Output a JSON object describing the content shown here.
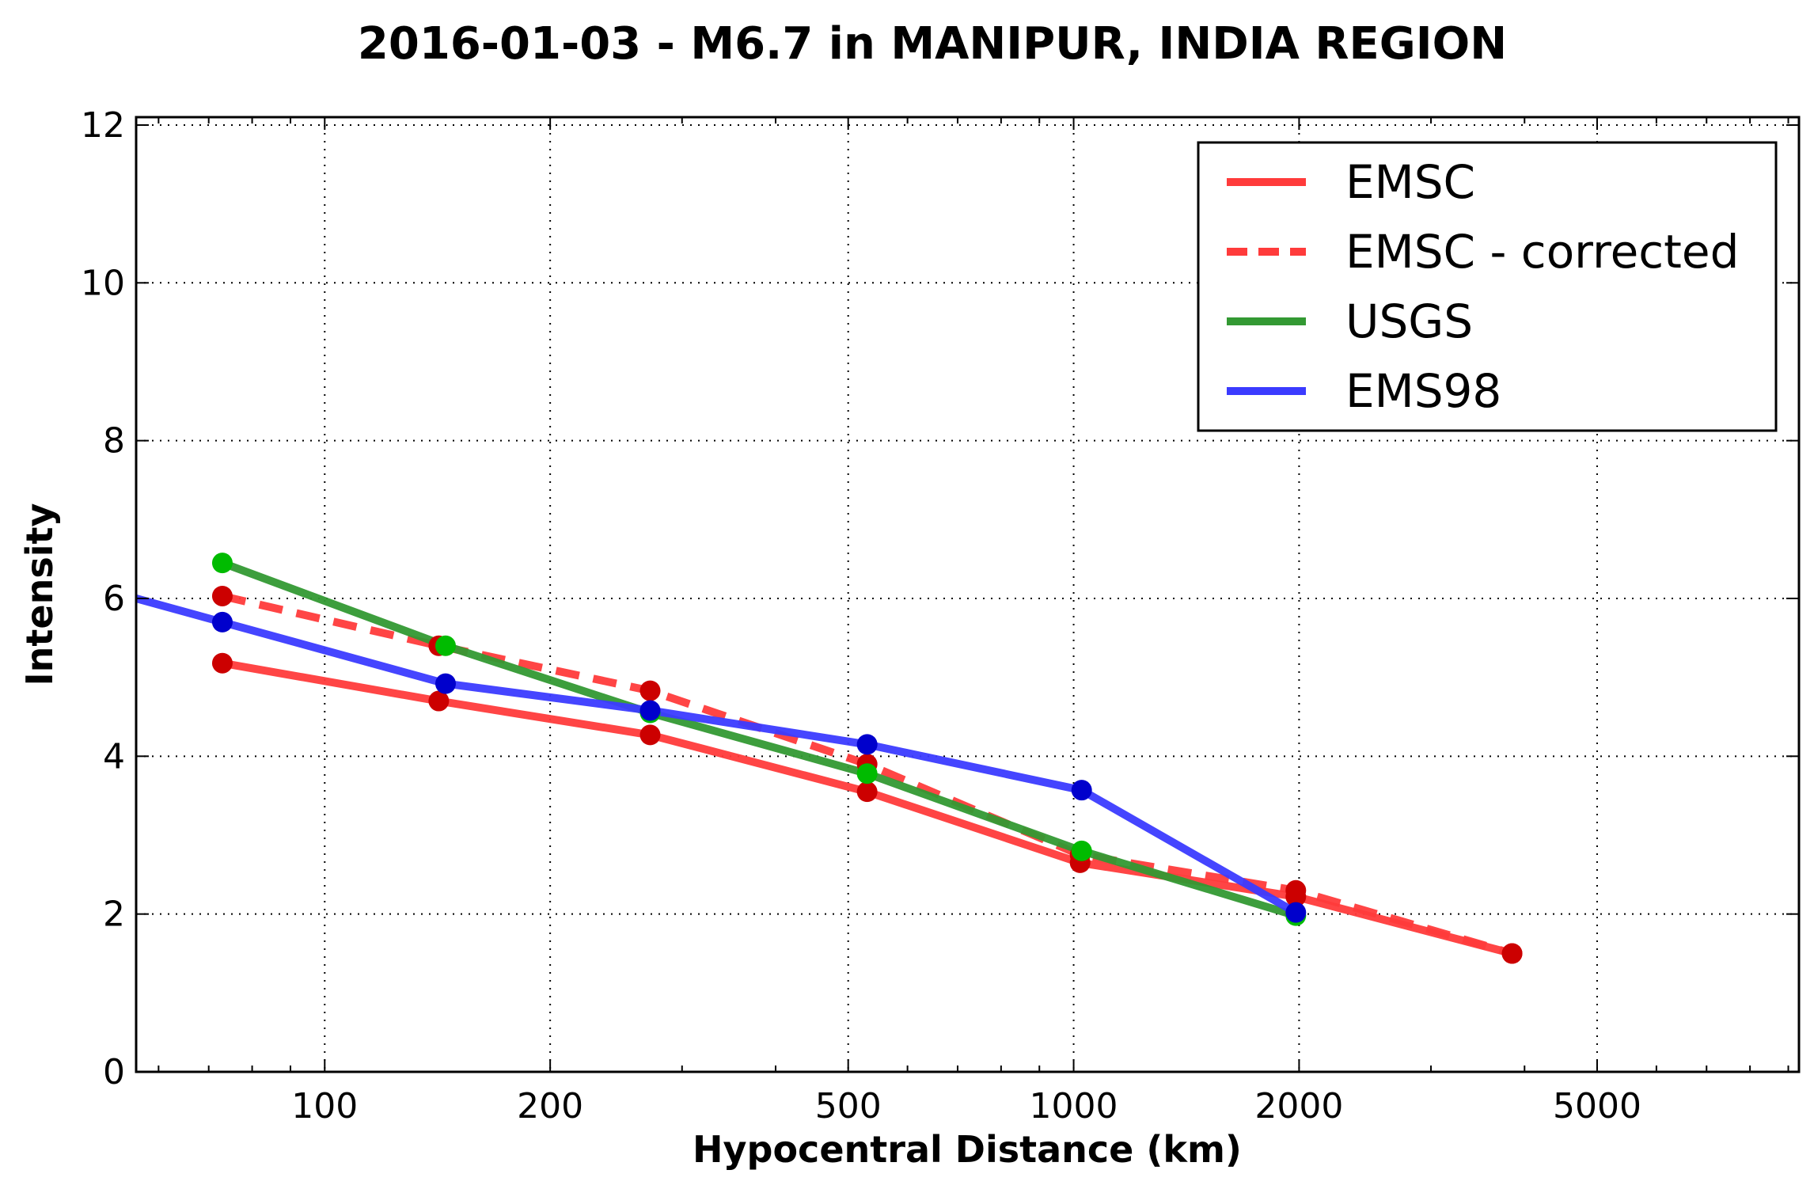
{
  "chart_data": {
    "type": "line",
    "title": "2016-01-03 - M6.7 in MANIPUR, INDIA REGION",
    "xlabel": "Hypocentral Distance (km)",
    "ylabel": "Intensity",
    "xscale": "log",
    "xlim": [
      56,
      9300
    ],
    "ylim": [
      0,
      12.1
    ],
    "xticks": [
      {
        "value": 100,
        "label": "100"
      },
      {
        "value": 200,
        "label": "200"
      },
      {
        "value": 500,
        "label": "500"
      },
      {
        "value": 1000,
        "label": "1000"
      },
      {
        "value": 2000,
        "label": "2000"
      },
      {
        "value": 5000,
        "label": "5000"
      }
    ],
    "yticks": [
      {
        "value": 0,
        "label": "0"
      },
      {
        "value": 2,
        "label": "2"
      },
      {
        "value": 4,
        "label": "4"
      },
      {
        "value": 6,
        "label": "6"
      },
      {
        "value": 8,
        "label": "8"
      },
      {
        "value": 10,
        "label": "10"
      },
      {
        "value": 12,
        "label": "12"
      }
    ],
    "grid": true,
    "legend_position": "top-right",
    "series": [
      {
        "name": "EMSC",
        "color": "#ff3b3b",
        "marker_color": "#cc0000",
        "style": "solid",
        "markers": true,
        "x": [
          73,
          142,
          272,
          530,
          1020,
          1980,
          3850
        ],
        "y": [
          5.18,
          4.7,
          4.27,
          3.55,
          2.65,
          2.22,
          1.5
        ]
      },
      {
        "name": "EMSC - corrected",
        "color": "#ff3b3b",
        "marker_color": "#cc0000",
        "style": "dashed",
        "markers": true,
        "x": [
          73,
          142,
          272,
          530,
          1020,
          1980,
          3850
        ],
        "y": [
          6.03,
          5.4,
          4.83,
          3.9,
          2.75,
          2.3,
          1.5
        ]
      },
      {
        "name": "USGS",
        "color": "#339933",
        "marker_color": "#00bb00",
        "style": "solid",
        "markers": true,
        "x": [
          73,
          145,
          272,
          530,
          1025,
          1980
        ],
        "y": [
          6.45,
          5.4,
          4.55,
          3.78,
          2.8,
          1.98
        ]
      },
      {
        "name": "EMS98",
        "color": "#3b3bff",
        "marker_color": "#0000cc",
        "style": "solid",
        "markers": true,
        "x": [
          56,
          73,
          145,
          272,
          530,
          1025,
          1980
        ],
        "y": [
          6.0,
          5.7,
          4.92,
          4.58,
          4.15,
          3.57,
          2.02
        ],
        "marker_from_index": 1
      }
    ]
  }
}
